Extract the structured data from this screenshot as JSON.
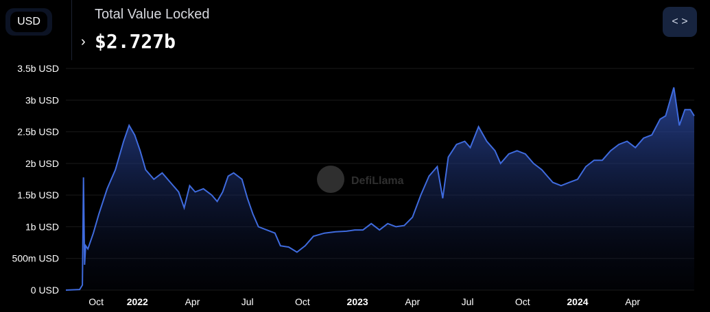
{
  "header": {
    "currency_label": "USD",
    "title": "Total Value Locked",
    "value": "$2.727b"
  },
  "watermark": "DefiLlama",
  "colors": {
    "line": "#3f6bde",
    "grid": "#1a1a1a",
    "bg": "#000000"
  },
  "chart_data": {
    "type": "area",
    "title": "Total Value Locked",
    "ylabel": "",
    "xlabel": "",
    "ylim": [
      0,
      3.5
    ],
    "y_ticks": [
      "0 USD",
      "500m USD",
      "1b USD",
      "1.5b USD",
      "2b USD",
      "2.5b USD",
      "3b USD",
      "3.5b USD"
    ],
    "x_ticks": [
      {
        "label": "Oct",
        "t": 0.25,
        "bold": false
      },
      {
        "label": "2022",
        "t": 1.0,
        "bold": true
      },
      {
        "label": "Apr",
        "t": 2.0,
        "bold": false
      },
      {
        "label": "Jul",
        "t": 3.0,
        "bold": false
      },
      {
        "label": "Oct",
        "t": 4.0,
        "bold": false
      },
      {
        "label": "2023",
        "t": 5.0,
        "bold": true
      },
      {
        "label": "Apr",
        "t": 6.0,
        "bold": false
      },
      {
        "label": "Jul",
        "t": 7.0,
        "bold": false
      },
      {
        "label": "Oct",
        "t": 8.0,
        "bold": false
      },
      {
        "label": "2024",
        "t": 9.0,
        "bold": true
      },
      {
        "label": "Apr",
        "t": 10.0,
        "bold": false
      }
    ],
    "x_range": [
      -0.3,
      11.12
    ],
    "series": [
      {
        "values": [
          [
            -0.3,
            0.0
          ],
          [
            -0.05,
            0.01
          ],
          [
            0.0,
            0.08
          ],
          [
            0.02,
            1.78
          ],
          [
            0.04,
            0.4
          ],
          [
            0.06,
            0.7
          ],
          [
            0.1,
            0.65
          ],
          [
            0.2,
            0.9
          ],
          [
            0.3,
            1.2
          ],
          [
            0.45,
            1.6
          ],
          [
            0.6,
            1.9
          ],
          [
            0.75,
            2.35
          ],
          [
            0.85,
            2.6
          ],
          [
            0.95,
            2.45
          ],
          [
            1.05,
            2.2
          ],
          [
            1.15,
            1.9
          ],
          [
            1.3,
            1.75
          ],
          [
            1.45,
            1.85
          ],
          [
            1.6,
            1.7
          ],
          [
            1.75,
            1.55
          ],
          [
            1.85,
            1.3
          ],
          [
            1.95,
            1.65
          ],
          [
            2.05,
            1.55
          ],
          [
            2.2,
            1.6
          ],
          [
            2.35,
            1.5
          ],
          [
            2.45,
            1.4
          ],
          [
            2.55,
            1.55
          ],
          [
            2.65,
            1.8
          ],
          [
            2.75,
            1.85
          ],
          [
            2.9,
            1.75
          ],
          [
            3.0,
            1.45
          ],
          [
            3.1,
            1.2
          ],
          [
            3.2,
            1.0
          ],
          [
            3.35,
            0.95
          ],
          [
            3.5,
            0.9
          ],
          [
            3.6,
            0.7
          ],
          [
            3.75,
            0.68
          ],
          [
            3.9,
            0.6
          ],
          [
            4.05,
            0.7
          ],
          [
            4.2,
            0.85
          ],
          [
            4.4,
            0.9
          ],
          [
            4.6,
            0.92
          ],
          [
            4.8,
            0.93
          ],
          [
            4.95,
            0.95
          ],
          [
            5.1,
            0.95
          ],
          [
            5.25,
            1.05
          ],
          [
            5.4,
            0.95
          ],
          [
            5.55,
            1.05
          ],
          [
            5.7,
            1.0
          ],
          [
            5.85,
            1.02
          ],
          [
            6.0,
            1.15
          ],
          [
            6.15,
            1.5
          ],
          [
            6.3,
            1.8
          ],
          [
            6.45,
            1.95
          ],
          [
            6.55,
            1.45
          ],
          [
            6.65,
            2.1
          ],
          [
            6.8,
            2.3
          ],
          [
            6.95,
            2.35
          ],
          [
            7.05,
            2.25
          ],
          [
            7.2,
            2.58
          ],
          [
            7.35,
            2.35
          ],
          [
            7.5,
            2.2
          ],
          [
            7.6,
            2.0
          ],
          [
            7.75,
            2.15
          ],
          [
            7.9,
            2.2
          ],
          [
            8.05,
            2.15
          ],
          [
            8.2,
            2.0
          ],
          [
            8.35,
            1.9
          ],
          [
            8.45,
            1.8
          ],
          [
            8.55,
            1.7
          ],
          [
            8.7,
            1.65
          ],
          [
            8.85,
            1.7
          ],
          [
            9.0,
            1.75
          ],
          [
            9.15,
            1.95
          ],
          [
            9.3,
            2.05
          ],
          [
            9.45,
            2.05
          ],
          [
            9.6,
            2.2
          ],
          [
            9.75,
            2.3
          ],
          [
            9.9,
            2.35
          ],
          [
            10.05,
            2.25
          ],
          [
            10.2,
            2.4
          ],
          [
            10.35,
            2.45
          ],
          [
            10.5,
            2.7
          ],
          [
            10.6,
            2.75
          ],
          [
            10.75,
            3.2
          ],
          [
            10.85,
            2.6
          ],
          [
            10.95,
            2.85
          ],
          [
            11.05,
            2.85
          ],
          [
            11.12,
            2.75
          ]
        ]
      }
    ]
  }
}
